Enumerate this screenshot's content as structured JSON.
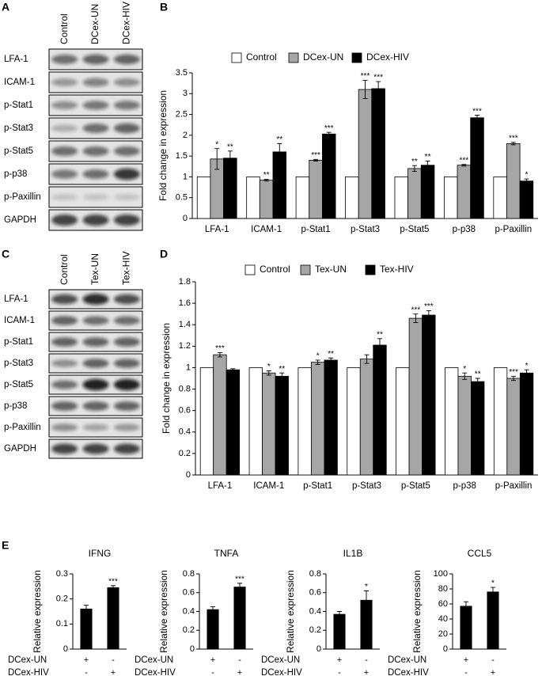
{
  "panels": [
    "A",
    "B",
    "C",
    "D",
    "E"
  ],
  "blots": [
    {
      "columns": [
        "Control",
        "DCex-UN",
        "DCex-HIV"
      ],
      "rows": [
        "LFA-1",
        "ICAM-1",
        "p-Stat1",
        "p-Stat3",
        "p-Stat5",
        "p-p38",
        "p-Paxillin",
        "GAPDH"
      ]
    },
    {
      "columns": [
        "Control",
        "Tex-UN",
        "Tex-HIV"
      ],
      "rows": [
        "LFA-1",
        "ICAM-1",
        "p-Stat1",
        "p-Stat3",
        "p-Stat5",
        "p-p38",
        "p-Paxillin",
        "GAPDH"
      ]
    }
  ],
  "chart_data": [
    {
      "type": "bar",
      "ylabel": "Fold change in expression",
      "legend": "top",
      "categories": [
        "LFA-1",
        "ICAM-1",
        "p-Stat1",
        "p-Stat3",
        "p-Stat5",
        "p-p38",
        "p-Paxillin"
      ],
      "ylim": [
        0,
        3.5
      ],
      "yticks": [
        0,
        0.5,
        1,
        1.5,
        2,
        2.5,
        3,
        3.5
      ],
      "series": [
        {
          "name": "Control",
          "color": "#ffffff",
          "values": [
            1,
            1,
            1,
            1,
            1,
            1,
            1
          ]
        },
        {
          "name": "DCex-UN",
          "color": "#a6a6a6",
          "values": [
            1.43,
            0.92,
            1.4,
            3.1,
            1.2,
            1.28,
            1.8
          ],
          "errors": [
            0.25,
            0.02,
            0.02,
            0.22,
            0.07,
            0.02,
            0.03
          ],
          "significance": [
            "*",
            "**",
            "***",
            "***",
            "**",
            "***",
            "***"
          ]
        },
        {
          "name": "DCex-HIV",
          "color": "#000000",
          "values": [
            1.45,
            1.6,
            2.03,
            3.12,
            1.28,
            2.42,
            0.9
          ],
          "errors": [
            0.17,
            0.2,
            0.04,
            0.17,
            0.1,
            0.06,
            0.05
          ],
          "significance": [
            "**",
            "**",
            "***",
            "***",
            "**",
            "***",
            "*"
          ]
        }
      ]
    },
    {
      "type": "bar",
      "ylabel": "Fold change in expression",
      "legend": "top",
      "categories": [
        "LFA-1",
        "ICAM-1",
        "p-Stat1",
        "p-Stat3",
        "p-Stat5",
        "p-p38",
        "p-Paxillin"
      ],
      "ylim": [
        0,
        1.8
      ],
      "yticks": [
        0,
        0.2,
        0.4,
        0.6,
        0.8,
        1,
        1.2,
        1.4,
        1.6,
        1.8
      ],
      "series": [
        {
          "name": "Control",
          "color": "#ffffff",
          "values": [
            1,
            1,
            1,
            1,
            1,
            1,
            1
          ]
        },
        {
          "name": "Tex-UN",
          "color": "#a6a6a6",
          "values": [
            1.12,
            0.95,
            1.05,
            1.08,
            1.46,
            0.92,
            0.9
          ],
          "errors": [
            0.02,
            0.02,
            0.02,
            0.04,
            0.04,
            0.03,
            0.02
          ],
          "significance": [
            "***",
            "*",
            "*",
            null,
            "***",
            "*",
            "***"
          ]
        },
        {
          "name": "Tex-HIV",
          "color": "#000000",
          "values": [
            0.98,
            0.92,
            1.07,
            1.21,
            1.49,
            0.87,
            0.95
          ],
          "errors": [
            0.01,
            0.03,
            0.02,
            0.06,
            0.04,
            0.03,
            0.03
          ],
          "significance": [
            null,
            "**",
            "**",
            "**",
            "***",
            "**",
            "*"
          ]
        }
      ]
    },
    {
      "type": "bar",
      "title": "IFNG",
      "ylabel": "Relative expression",
      "color": "#000000",
      "ylim": [
        0,
        0.3
      ],
      "yticks": [
        0,
        0.1,
        0.2,
        0.3
      ],
      "values": [
        0.16,
        0.245
      ],
      "errors": [
        0.015,
        0.008
      ],
      "significance": [
        null,
        "***"
      ],
      "conditions": [
        {
          "name": "DCex-UN",
          "marks": [
            "+",
            "-"
          ]
        },
        {
          "name": "DCex-HIV",
          "marks": [
            "-",
            "+"
          ]
        }
      ]
    },
    {
      "type": "bar",
      "title": "TNFA",
      "ylabel": "Relative expression",
      "color": "#000000",
      "ylim": [
        0,
        0.8
      ],
      "yticks": [
        0,
        0.2,
        0.4,
        0.6,
        0.8
      ],
      "values": [
        0.42,
        0.66
      ],
      "errors": [
        0.03,
        0.04
      ],
      "significance": [
        null,
        "***"
      ],
      "conditions": [
        {
          "name": "DCex-UN",
          "marks": [
            "+",
            "-"
          ]
        },
        {
          "name": "DCex-HIV",
          "marks": [
            "-",
            "+"
          ]
        }
      ]
    },
    {
      "type": "bar",
      "title": "IL1B",
      "ylabel": "Relative expression",
      "color": "#000000",
      "ylim": [
        0,
        0.8
      ],
      "yticks": [
        0,
        0.2,
        0.4,
        0.6,
        0.8
      ],
      "values": [
        0.37,
        0.52
      ],
      "errors": [
        0.03,
        0.1
      ],
      "significance": [
        null,
        "*"
      ],
      "conditions": [
        {
          "name": "DCex-UN",
          "marks": [
            "+",
            "-"
          ]
        },
        {
          "name": "DCex-HIV",
          "marks": [
            "-",
            "+"
          ]
        }
      ]
    },
    {
      "type": "bar",
      "title": "CCL5",
      "ylabel": "Relative expression",
      "color": "#000000",
      "ylim": [
        0,
        100
      ],
      "yticks": [
        0,
        20,
        40,
        60,
        80,
        100
      ],
      "values": [
        57,
        76
      ],
      "errors": [
        6,
        6
      ],
      "significance": [
        null,
        "*"
      ],
      "conditions": [
        {
          "name": "DCex-UN",
          "marks": [
            "+",
            "-"
          ]
        },
        {
          "name": "DCex-HIV",
          "marks": [
            "-",
            "+"
          ]
        }
      ]
    }
  ]
}
